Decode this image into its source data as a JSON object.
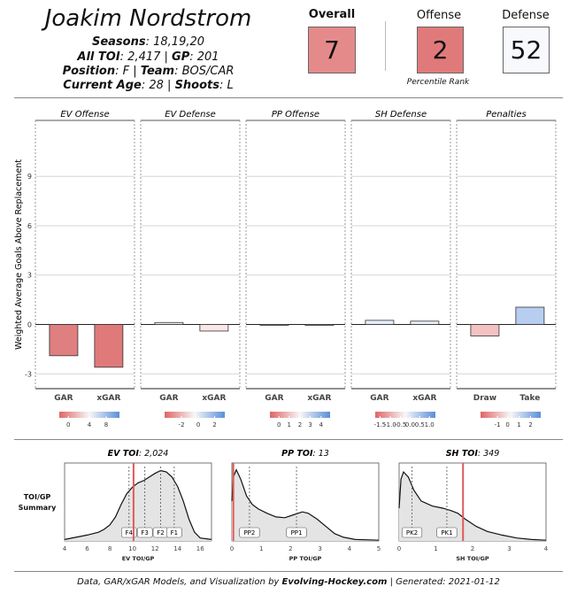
{
  "header": {
    "name": "Joakim Nordstrom",
    "seasons_label": "Seasons",
    "seasons_value": ": 18,19,20",
    "toi_label": "All TOI",
    "toi_value": ": 2,417 | ",
    "gp_label": "GP",
    "gp_value": ": 201",
    "position_label": "Position",
    "position_value": ": F | ",
    "team_label": "Team",
    "team_value": ": BOS/CAR",
    "age_label": "Current Age",
    "age_value": ": 28 | ",
    "shoots_label": "Shoots",
    "shoots_value": ": L"
  },
  "ranks": {
    "overall": {
      "label": "Overall",
      "value": "7",
      "color": "#e58a8a"
    },
    "offense": {
      "label": "Offense",
      "value": "2",
      "color": "#e07a7a"
    },
    "defense": {
      "label": "Defense",
      "value": "52",
      "color": "#f7f9fd"
    },
    "percentile_label": "Percentile Rank"
  },
  "footer": {
    "prefix": "Data, GAR/xGAR Models, and Visualization by ",
    "site": "Evolving-Hockey.com",
    "suffix": " | Generated:  2021-01-12"
  },
  "chart_data": [
    {
      "type": "bar",
      "ylabel": "Weighted Average Goals Above Replacement",
      "ylim": [
        -3.9,
        12.4
      ],
      "yticks": [
        -3,
        0,
        3,
        6,
        9
      ],
      "grid": true,
      "panels": [
        {
          "title": "EV Offense",
          "categories": [
            "GAR",
            "xGAR"
          ],
          "values": [
            -1.9,
            -2.6
          ],
          "bar_colors": [
            "#e07f7f",
            "#e07a7a"
          ],
          "legend": {
            "ticks": [
              "0",
              "4",
              "8"
            ],
            "positions": [
              0.15,
              0.5,
              0.78
            ]
          }
        },
        {
          "title": "EV Defense",
          "categories": [
            "GAR",
            "xGAR"
          ],
          "values": [
            0.12,
            -0.4
          ],
          "bar_colors": [
            "#f3f3f8",
            "#fbe7e7"
          ],
          "legend": {
            "ticks": [
              "-2",
              "0",
              "2"
            ],
            "positions": [
              0.28,
              0.56,
              0.83
            ]
          }
        },
        {
          "title": "PP Offense",
          "categories": [
            "GAR",
            "xGAR"
          ],
          "values": [
            -0.03,
            -0.02
          ],
          "bar_colors": [
            "#f8f8f8",
            "#f8f8f8"
          ],
          "legend": {
            "ticks": [
              "0",
              "1",
              "2",
              "3",
              "4"
            ],
            "positions": [
              0.15,
              0.32,
              0.5,
              0.67,
              0.85
            ]
          }
        },
        {
          "title": "SH Defense",
          "categories": [
            "GAR",
            "xGAR"
          ],
          "values": [
            0.25,
            0.2
          ],
          "bar_colors": [
            "#e6eef9",
            "#e9f0fa"
          ],
          "legend": {
            "ticks": [
              "-1.5",
              "-1.0",
              "-0.5",
              "0.0",
              "0.5",
              "1.0"
            ],
            "positions": [
              0.08,
              0.25,
              0.42,
              0.58,
              0.74,
              0.9
            ]
          }
        },
        {
          "title": "Penalties",
          "categories": [
            "Draw",
            "Take"
          ],
          "values": [
            -0.7,
            1.05
          ],
          "bar_colors": [
            "#f4c2c2",
            "#b8cef0"
          ],
          "legend": {
            "ticks": [
              "-1",
              "0",
              "1",
              "2"
            ],
            "positions": [
              0.28,
              0.45,
              0.64,
              0.83
            ]
          }
        }
      ]
    },
    {
      "type": "area",
      "row_label": [
        "TOI/GP",
        "Summary"
      ],
      "panels": [
        {
          "title_label": "EV TOI",
          "title_value": ": 2,024",
          "xlabel": "EV TOI/GP",
          "xlim": [
            4,
            17
          ],
          "xticks": [
            4,
            6,
            8,
            10,
            12,
            14,
            16
          ],
          "player_value": 10.1,
          "markers": [
            {
              "label": "F4",
              "x": 9.7
            },
            {
              "label": "F3",
              "x": 11.1
            },
            {
              "label": "F2",
              "x": 12.5
            },
            {
              "label": "F1",
              "x": 13.7
            }
          ],
          "density": [
            [
              4,
              0.02
            ],
            [
              5,
              0.05
            ],
            [
              6,
              0.08
            ],
            [
              7,
              0.12
            ],
            [
              7.5,
              0.16
            ],
            [
              8,
              0.22
            ],
            [
              8.5,
              0.33
            ],
            [
              9,
              0.5
            ],
            [
              9.5,
              0.65
            ],
            [
              10,
              0.74
            ],
            [
              10.5,
              0.8
            ],
            [
              11,
              0.83
            ],
            [
              11.5,
              0.88
            ],
            [
              12,
              0.93
            ],
            [
              12.5,
              0.97
            ],
            [
              13,
              0.95
            ],
            [
              13.5,
              0.88
            ],
            [
              14,
              0.75
            ],
            [
              14.5,
              0.55
            ],
            [
              15,
              0.3
            ],
            [
              15.5,
              0.12
            ],
            [
              16,
              0.04
            ],
            [
              17,
              0.02
            ]
          ]
        },
        {
          "title_label": "PP TOI",
          "title_value": ": 13",
          "xlabel": "PP TOI/GP",
          "xlim": [
            0,
            5
          ],
          "xticks": [
            0,
            1,
            2,
            3,
            4,
            5
          ],
          "player_value": 0.05,
          "markers": [
            {
              "label": "PP2",
              "x": 0.6
            },
            {
              "label": "PP1",
              "x": 2.2
            }
          ],
          "density": [
            [
              0,
              0.55
            ],
            [
              0.05,
              0.88
            ],
            [
              0.15,
              0.98
            ],
            [
              0.3,
              0.85
            ],
            [
              0.5,
              0.62
            ],
            [
              0.7,
              0.5
            ],
            [
              0.9,
              0.44
            ],
            [
              1.2,
              0.38
            ],
            [
              1.5,
              0.33
            ],
            [
              1.8,
              0.32
            ],
            [
              2.1,
              0.36
            ],
            [
              2.4,
              0.4
            ],
            [
              2.6,
              0.38
            ],
            [
              2.9,
              0.3
            ],
            [
              3.2,
              0.2
            ],
            [
              3.5,
              0.1
            ],
            [
              3.8,
              0.05
            ],
            [
              4.2,
              0.02
            ],
            [
              5,
              0.01
            ]
          ]
        },
        {
          "title_label": "SH TOI",
          "title_value": ": 349",
          "xlabel": "SH TOI/GP",
          "xlim": [
            0,
            4
          ],
          "xticks": [
            0,
            1,
            2,
            3,
            4
          ],
          "player_value": 1.74,
          "markers": [
            {
              "label": "PK2",
              "x": 0.35
            },
            {
              "label": "PK1",
              "x": 1.3
            }
          ],
          "density": [
            [
              0,
              0.45
            ],
            [
              0.05,
              0.85
            ],
            [
              0.12,
              0.95
            ],
            [
              0.25,
              0.88
            ],
            [
              0.4,
              0.7
            ],
            [
              0.6,
              0.55
            ],
            [
              0.9,
              0.48
            ],
            [
              1.2,
              0.45
            ],
            [
              1.4,
              0.42
            ],
            [
              1.6,
              0.38
            ],
            [
              1.8,
              0.3
            ],
            [
              2.1,
              0.2
            ],
            [
              2.4,
              0.13
            ],
            [
              2.8,
              0.08
            ],
            [
              3.2,
              0.04
            ],
            [
              3.6,
              0.02
            ],
            [
              4,
              0.01
            ]
          ]
        }
      ]
    }
  ]
}
